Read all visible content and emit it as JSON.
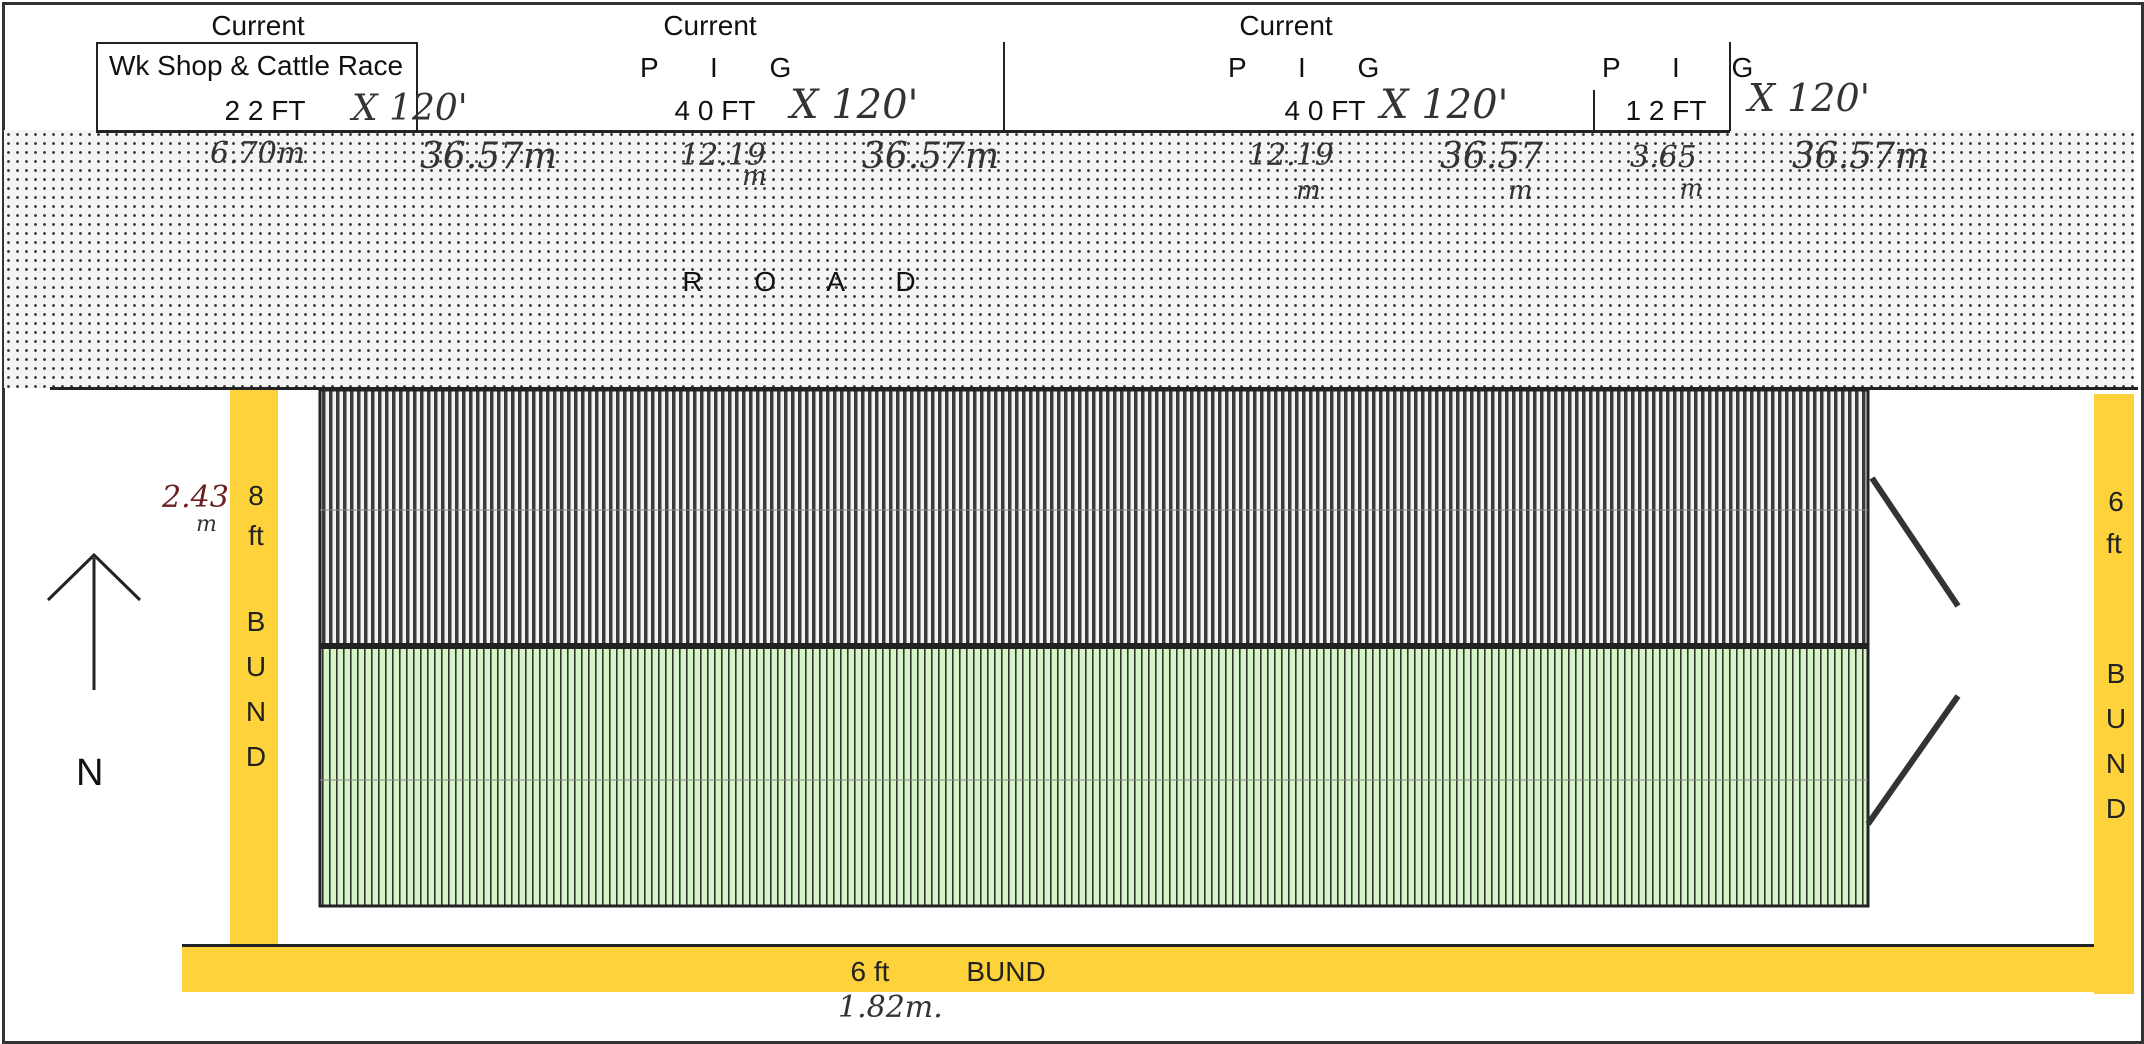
{
  "header": {
    "sections": [
      {
        "id": "wkshop",
        "label": "Current",
        "name": "Wk Shop & Cattle Race",
        "size": "2 2 FT",
        "hand_dim": "X 120'",
        "hand_m": "6.70m"
      },
      {
        "id": "pig1",
        "label": "Current",
        "name": "P I G",
        "size": "4 0 FT",
        "hand_dim": "X 120'",
        "hand_w": "12.19",
        "hand_unit": "m",
        "hand_m": "36.57m"
      },
      {
        "id": "pig2",
        "label": "Current",
        "name": "P I G",
        "size": "4 0 FT",
        "hand_dim": "X 120'",
        "hand_w": "12.19",
        "hand_unit": "m",
        "hand_m": "36.57",
        "hand_m_unit": "m"
      },
      {
        "id": "pig3",
        "name": "P I G",
        "size": "1 2 FT",
        "hand_dim": "X 120'",
        "hand_w": "3.65",
        "hand_unit": "m",
        "hand_m": "36.57m"
      }
    ],
    "extra_hand_m": "36.57m"
  },
  "road": {
    "label": "R O A D"
  },
  "compass": {
    "label": "N"
  },
  "bunds": {
    "left": {
      "height": "8",
      "unit": "ft",
      "letters": [
        "B",
        "U",
        "N",
        "D"
      ],
      "hand": "2.43",
      "hand_unit": "m"
    },
    "right": {
      "height": "6",
      "unit": "ft",
      "letters": [
        "B",
        "U",
        "N",
        "D"
      ]
    },
    "bottom": {
      "height": "6 ft",
      "label": "BUND",
      "hand": "1.82m."
    }
  },
  "colors": {
    "bund": "#fdd23a",
    "road_dot": "#444444",
    "dark_stripe": "#3a3a3a",
    "light_fill": "#d6f5c6",
    "outline": "#222222"
  }
}
